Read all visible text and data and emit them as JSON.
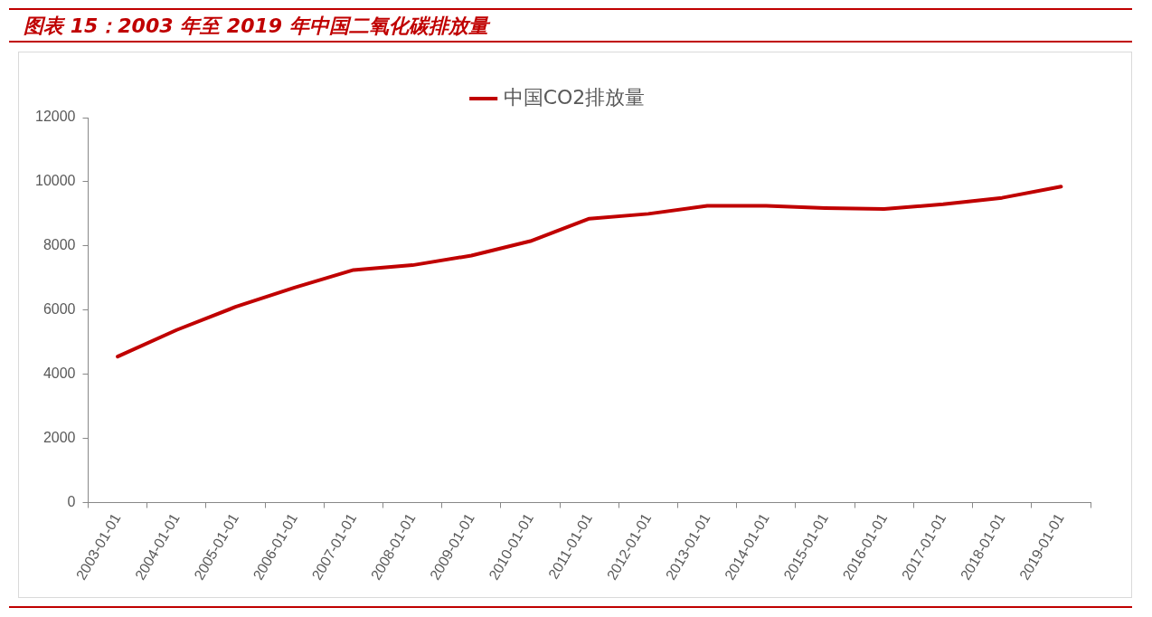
{
  "chart_data": {
    "type": "line",
    "title": "图表 15：2003 年至 2019 年中国二氧化碳排放量",
    "categories": [
      "2003-01-01",
      "2004-01-01",
      "2005-01-01",
      "2006-01-01",
      "2007-01-01",
      "2008-01-01",
      "2009-01-01",
      "2010-01-01",
      "2011-01-01",
      "2012-01-01",
      "2013-01-01",
      "2014-01-01",
      "2015-01-01",
      "2016-01-01",
      "2017-01-01",
      "2018-01-01",
      "2019-01-01"
    ],
    "series": [
      {
        "name": "中国CO2排放量",
        "color": "#c00000",
        "values": [
          4550,
          5380,
          6100,
          6700,
          7250,
          7400,
          7700,
          8150,
          8850,
          9000,
          9250,
          9250,
          9180,
          9150,
          9300,
          9500,
          9850
        ]
      }
    ],
    "ylim": [
      0,
      12000
    ],
    "yticks": [
      0,
      2000,
      4000,
      6000,
      8000,
      10000,
      12000
    ],
    "grid": false,
    "legend": "top",
    "marker": "none",
    "line_style": "solid"
  }
}
